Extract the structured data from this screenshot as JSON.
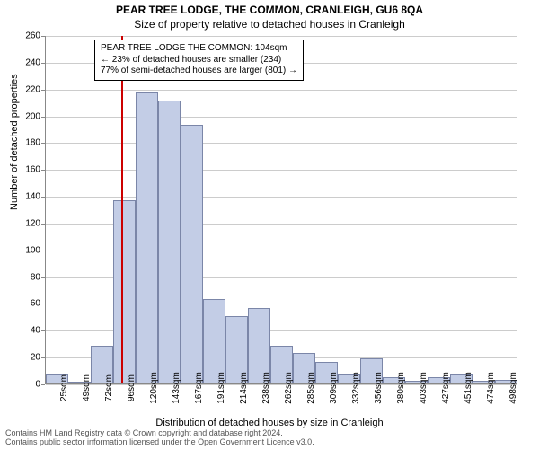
{
  "title_main": "PEAR TREE LODGE, THE COMMON, CRANLEIGH, GU6 8QA",
  "title_sub": "Size of property relative to detached houses in Cranleigh",
  "y_axis_title": "Number of detached properties",
  "x_axis_title": "Distribution of detached houses by size in Cranleigh",
  "info_box": {
    "line1": "PEAR TREE LODGE THE COMMON: 104sqm",
    "line2": "← 23% of detached houses are smaller (234)",
    "line3": "77% of semi-detached houses are larger (801) →"
  },
  "footer": {
    "line1": "Contains HM Land Registry data © Crown copyright and database right 2024.",
    "line2": "Contains public sector information licensed under the Open Government Licence v3.0."
  },
  "chart": {
    "type": "histogram",
    "ylim": [
      0,
      260
    ],
    "y_ticks": [
      0,
      20,
      40,
      60,
      80,
      100,
      120,
      140,
      160,
      180,
      200,
      220,
      240,
      260
    ],
    "x_categories": [
      "25sqm",
      "49sqm",
      "72sqm",
      "96sqm",
      "120sqm",
      "143sqm",
      "167sqm",
      "191sqm",
      "214sqm",
      "238sqm",
      "262sqm",
      "285sqm",
      "309sqm",
      "332sqm",
      "356sqm",
      "380sqm",
      "403sqm",
      "427sqm",
      "451sqm",
      "474sqm",
      "498sqm"
    ],
    "bar_values": [
      7,
      0,
      28,
      137,
      217,
      211,
      193,
      63,
      50,
      56,
      28,
      23,
      16,
      7,
      19,
      5,
      2,
      5,
      7,
      2,
      3
    ],
    "bar_fill": "#c3cde6",
    "bar_border": "#7b86a8",
    "grid_color": "#cccccc",
    "axis_color": "#888888",
    "background": "#ffffff",
    "marker_value_index": 3.35,
    "marker_color": "#cc0000",
    "title_fontsize": 12,
    "sub_fontsize": 12,
    "axis_label_fontsize": 11,
    "tick_fontsize": 10,
    "info_fontsize": 10,
    "footer_fontsize": 9,
    "footer_color": "#555555"
  }
}
